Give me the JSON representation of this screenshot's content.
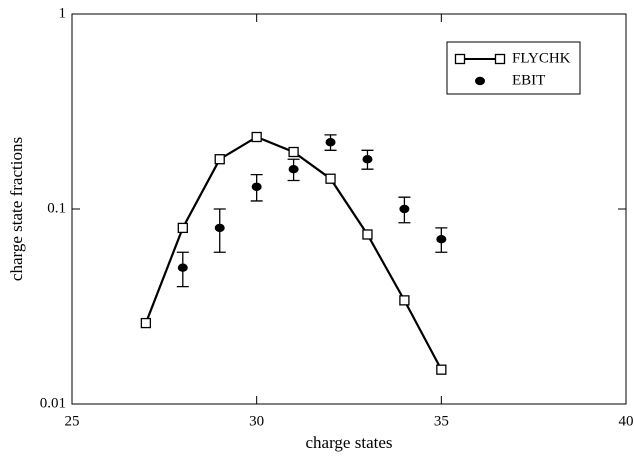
{
  "chart_data": {
    "type": "line",
    "x_label": "charge states",
    "y_label": "charge state fractions",
    "xlim": [
      25,
      40
    ],
    "xticks": [
      25,
      30,
      35,
      40
    ],
    "ylim": [
      0.01,
      1
    ],
    "yticks": [
      0.01,
      0.1,
      1
    ],
    "y_scale": "log",
    "grid": false,
    "legend_position": "upper right",
    "series": [
      {
        "name": "FLYCHK",
        "color": "#000000",
        "style": "line-square",
        "x": [
          27,
          28,
          29,
          30,
          31,
          32,
          33,
          34,
          35
        ],
        "values": [
          0.026,
          0.08,
          0.18,
          0.234,
          0.196,
          0.143,
          0.074,
          0.034,
          0.015
        ]
      },
      {
        "name": "EBIT",
        "color": "#000000",
        "style": "point-errorbar",
        "x": [
          28,
          29,
          30,
          31,
          32,
          33,
          34,
          35
        ],
        "values": [
          0.05,
          0.08,
          0.13,
          0.16,
          0.22,
          0.18,
          0.1,
          0.07
        ],
        "errors": [
          0.01,
          0.02,
          0.02,
          0.02,
          0.02,
          0.02,
          0.015,
          0.01
        ]
      }
    ]
  }
}
